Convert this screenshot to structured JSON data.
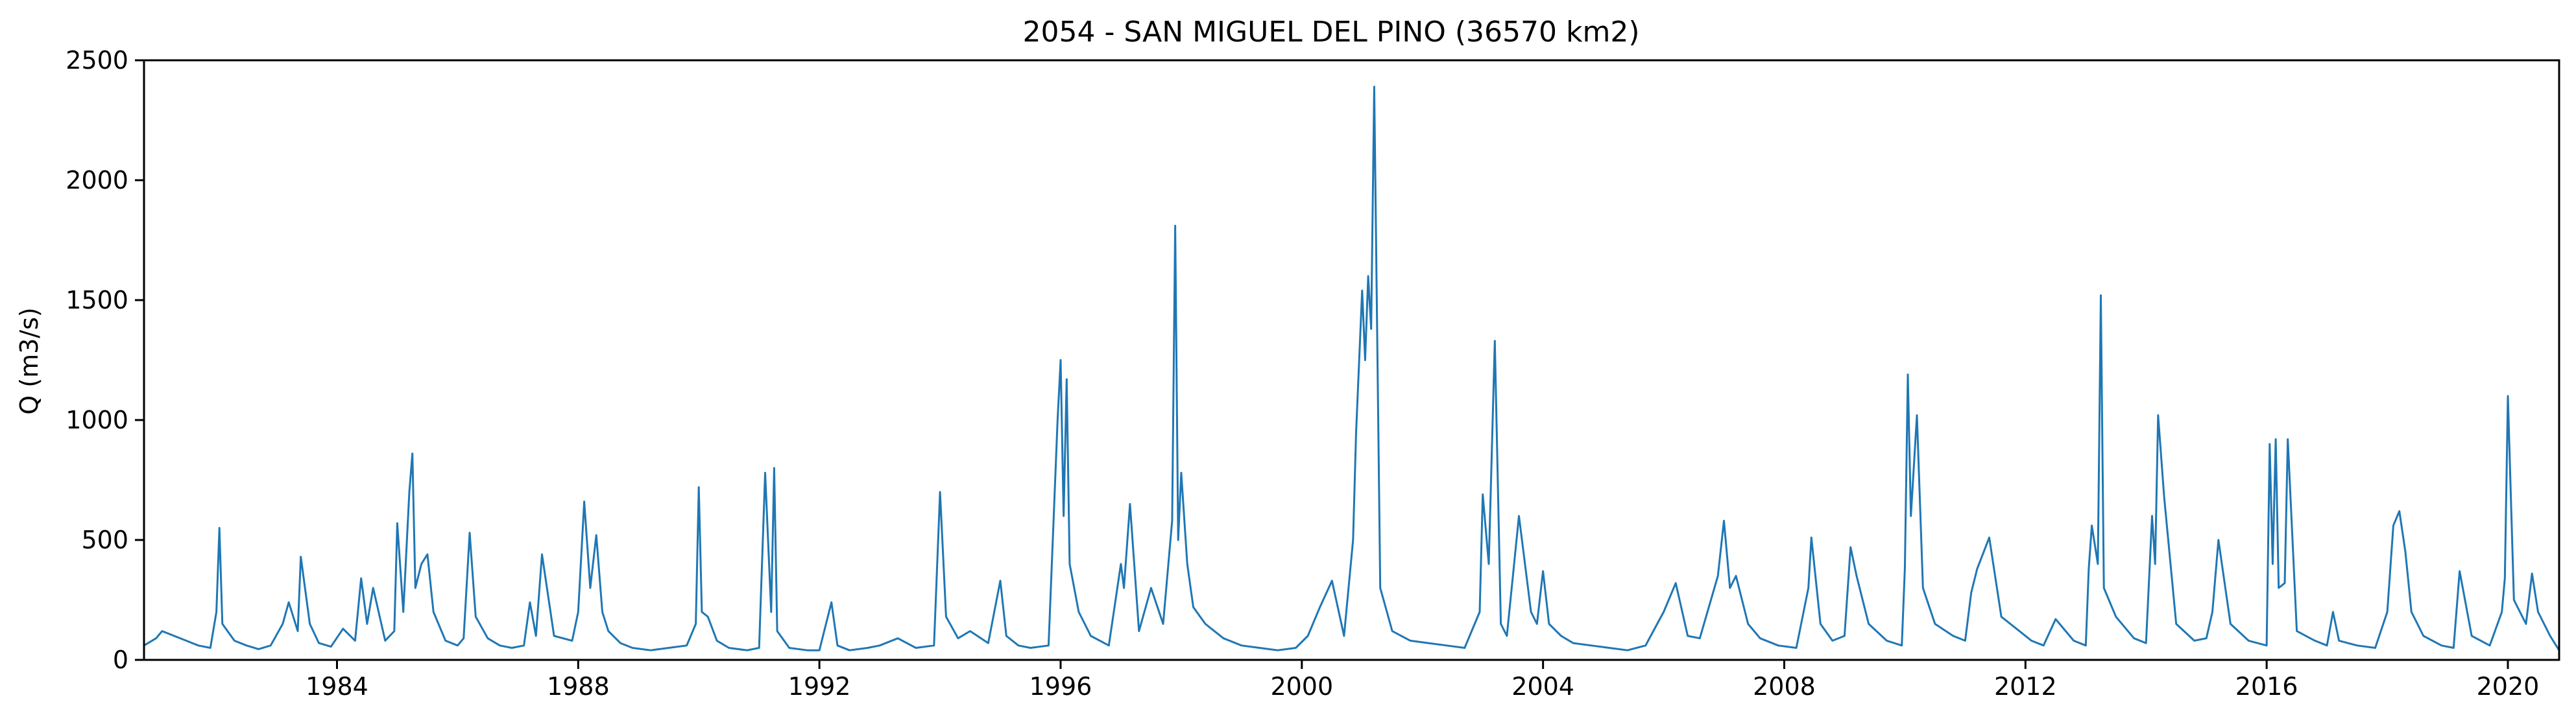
{
  "chart_data": {
    "type": "line",
    "title": "2054 - SAN MIGUEL DEL PINO (36570 km2)",
    "xlabel": "",
    "ylabel": "Q (m3/s)",
    "xlim": [
      1980.8,
      2020.85
    ],
    "ylim": [
      0,
      2500
    ],
    "xticks": [
      1984,
      1988,
      1992,
      1996,
      2000,
      2004,
      2008,
      2012,
      2016,
      2020
    ],
    "xtick_labels": [
      "1984",
      "1988",
      "1992",
      "1996",
      "2000",
      "2004",
      "2008",
      "2012",
      "2016",
      "2020"
    ],
    "yticks": [
      0,
      500,
      1000,
      1500,
      2000,
      2500
    ],
    "ytick_labels": [
      "0",
      "500",
      "1000",
      "1500",
      "2000",
      "2500"
    ],
    "grid": false,
    "line_color": "#1f77b4",
    "series": [
      {
        "x": [
          1980.8,
          1981.0,
          1981.1,
          1981.3,
          1981.5,
          1981.7,
          1981.9,
          1982.0,
          1982.05,
          1982.1,
          1982.3,
          1982.5,
          1982.7,
          1982.9,
          1983.1,
          1983.2,
          1983.35,
          1983.4,
          1983.55,
          1983.7,
          1983.9,
          1984.1,
          1984.3,
          1984.4,
          1984.5,
          1984.6,
          1984.8,
          1984.95,
          1985.0,
          1985.1,
          1985.2,
          1985.25,
          1985.3,
          1985.4,
          1985.5,
          1985.6,
          1985.8,
          1986.0,
          1986.1,
          1986.2,
          1986.3,
          1986.5,
          1986.7,
          1986.9,
          1987.1,
          1987.2,
          1987.3,
          1987.4,
          1987.6,
          1987.9,
          1988.0,
          1988.1,
          1988.2,
          1988.3,
          1988.4,
          1988.5,
          1988.7,
          1988.9,
          1989.2,
          1989.5,
          1989.8,
          1989.95,
          1990.0,
          1990.05,
          1990.15,
          1990.3,
          1990.5,
          1990.8,
          1991.0,
          1991.1,
          1991.2,
          1991.25,
          1991.3,
          1991.5,
          1991.8,
          1992.0,
          1992.2,
          1992.3,
          1992.5,
          1992.8,
          1993.0,
          1993.3,
          1993.6,
          1993.9,
          1994.0,
          1994.1,
          1994.3,
          1994.5,
          1994.8,
          1995.0,
          1995.1,
          1995.3,
          1995.5,
          1995.8,
          1995.95,
          1996.0,
          1996.05,
          1996.1,
          1996.15,
          1996.3,
          1996.5,
          1996.8,
          1997.0,
          1997.05,
          1997.15,
          1997.3,
          1997.5,
          1997.7,
          1997.85,
          1997.9,
          1997.95,
          1998.0,
          1998.1,
          1998.2,
          1998.4,
          1998.5,
          1998.7,
          1999.0,
          1999.3,
          1999.6,
          1999.9,
          2000.1,
          2000.3,
          2000.5,
          2000.7,
          2000.85,
          2000.9,
          2001.0,
          2001.05,
          2001.1,
          2001.15,
          2001.2,
          2001.3,
          2001.5,
          2001.8,
          2002.1,
          2002.4,
          2002.7,
          2002.95,
          2003.0,
          2003.1,
          2003.2,
          2003.3,
          2003.4,
          2003.6,
          2003.8,
          2003.9,
          2004.0,
          2004.1,
          2004.3,
          2004.5,
          2004.8,
          2005.1,
          2005.4,
          2005.7,
          2006.0,
          2006.2,
          2006.4,
          2006.6,
          2006.9,
          2007.0,
          2007.1,
          2007.2,
          2007.4,
          2007.6,
          2007.9,
          2008.2,
          2008.4,
          2008.45,
          2008.6,
          2008.8,
          2009.0,
          2009.1,
          2009.2,
          2009.4,
          2009.7,
          2009.95,
          2010.0,
          2010.05,
          2010.1,
          2010.2,
          2010.3,
          2010.5,
          2010.8,
          2011.0,
          2011.1,
          2011.2,
          2011.4,
          2011.6,
          2011.9,
          2012.1,
          2012.3,
          2012.5,
          2012.8,
          2013.0,
          2013.05,
          2013.1,
          2013.2,
          2013.25,
          2013.3,
          2013.5,
          2013.8,
          2014.0,
          2014.1,
          2014.15,
          2014.2,
          2014.3,
          2014.5,
          2014.8,
          2015.0,
          2015.1,
          2015.2,
          2015.4,
          2015.7,
          2016.0,
          2016.05,
          2016.1,
          2016.15,
          2016.2,
          2016.3,
          2016.35,
          2016.5,
          2016.8,
          2017.0,
          2017.1,
          2017.2,
          2017.5,
          2017.8,
          2018.0,
          2018.1,
          2018.2,
          2018.3,
          2018.4,
          2018.6,
          2018.9,
          2019.1,
          2019.2,
          2019.4,
          2019.7,
          2019.9,
          2019.95,
          2020.0,
          2020.1,
          2020.2,
          2020.3,
          2020.4,
          2020.5,
          2020.7,
          2020.85
        ],
        "y": [
          60,
          90,
          120,
          100,
          80,
          60,
          50,
          200,
          550,
          150,
          80,
          60,
          45,
          60,
          150,
          240,
          120,
          430,
          150,
          70,
          55,
          130,
          80,
          340,
          150,
          300,
          80,
          120,
          570,
          200,
          700,
          860,
          300,
          400,
          440,
          200,
          80,
          60,
          90,
          530,
          180,
          90,
          60,
          50,
          60,
          240,
          100,
          440,
          100,
          80,
          200,
          660,
          300,
          520,
          200,
          120,
          70,
          50,
          40,
          50,
          60,
          150,
          720,
          200,
          180,
          80,
          50,
          40,
          50,
          780,
          200,
          800,
          120,
          50,
          40,
          40,
          240,
          60,
          40,
          50,
          60,
          90,
          50,
          60,
          700,
          180,
          90,
          120,
          70,
          330,
          100,
          60,
          50,
          60,
          1000,
          1250,
          600,
          1170,
          400,
          200,
          100,
          60,
          400,
          300,
          650,
          120,
          300,
          150,
          580,
          1810,
          500,
          780,
          400,
          220,
          150,
          130,
          90,
          60,
          50,
          40,
          50,
          100,
          220,
          330,
          100,
          500,
          950,
          1540,
          1250,
          1600,
          1380,
          2390,
          300,
          120,
          80,
          70,
          60,
          50,
          200,
          690,
          400,
          1330,
          150,
          100,
          600,
          200,
          150,
          370,
          150,
          100,
          70,
          60,
          50,
          40,
          60,
          200,
          320,
          100,
          90,
          350,
          580,
          300,
          350,
          150,
          90,
          60,
          50,
          300,
          510,
          150,
          80,
          100,
          470,
          350,
          150,
          80,
          60,
          380,
          1190,
          600,
          1020,
          300,
          150,
          100,
          80,
          280,
          380,
          510,
          180,
          120,
          80,
          60,
          170,
          80,
          60,
          380,
          560,
          400,
          1520,
          300,
          180,
          90,
          70,
          600,
          400,
          1020,
          680,
          150,
          80,
          90,
          200,
          500,
          150,
          80,
          60,
          900,
          400,
          920,
          300,
          320,
          920,
          120,
          80,
          60,
          200,
          80,
          60,
          50,
          200,
          560,
          620,
          450,
          200,
          100,
          60,
          50,
          370,
          100,
          60,
          200,
          340,
          1100,
          250,
          200,
          150,
          360,
          200,
          100,
          40
        ]
      }
    ]
  }
}
